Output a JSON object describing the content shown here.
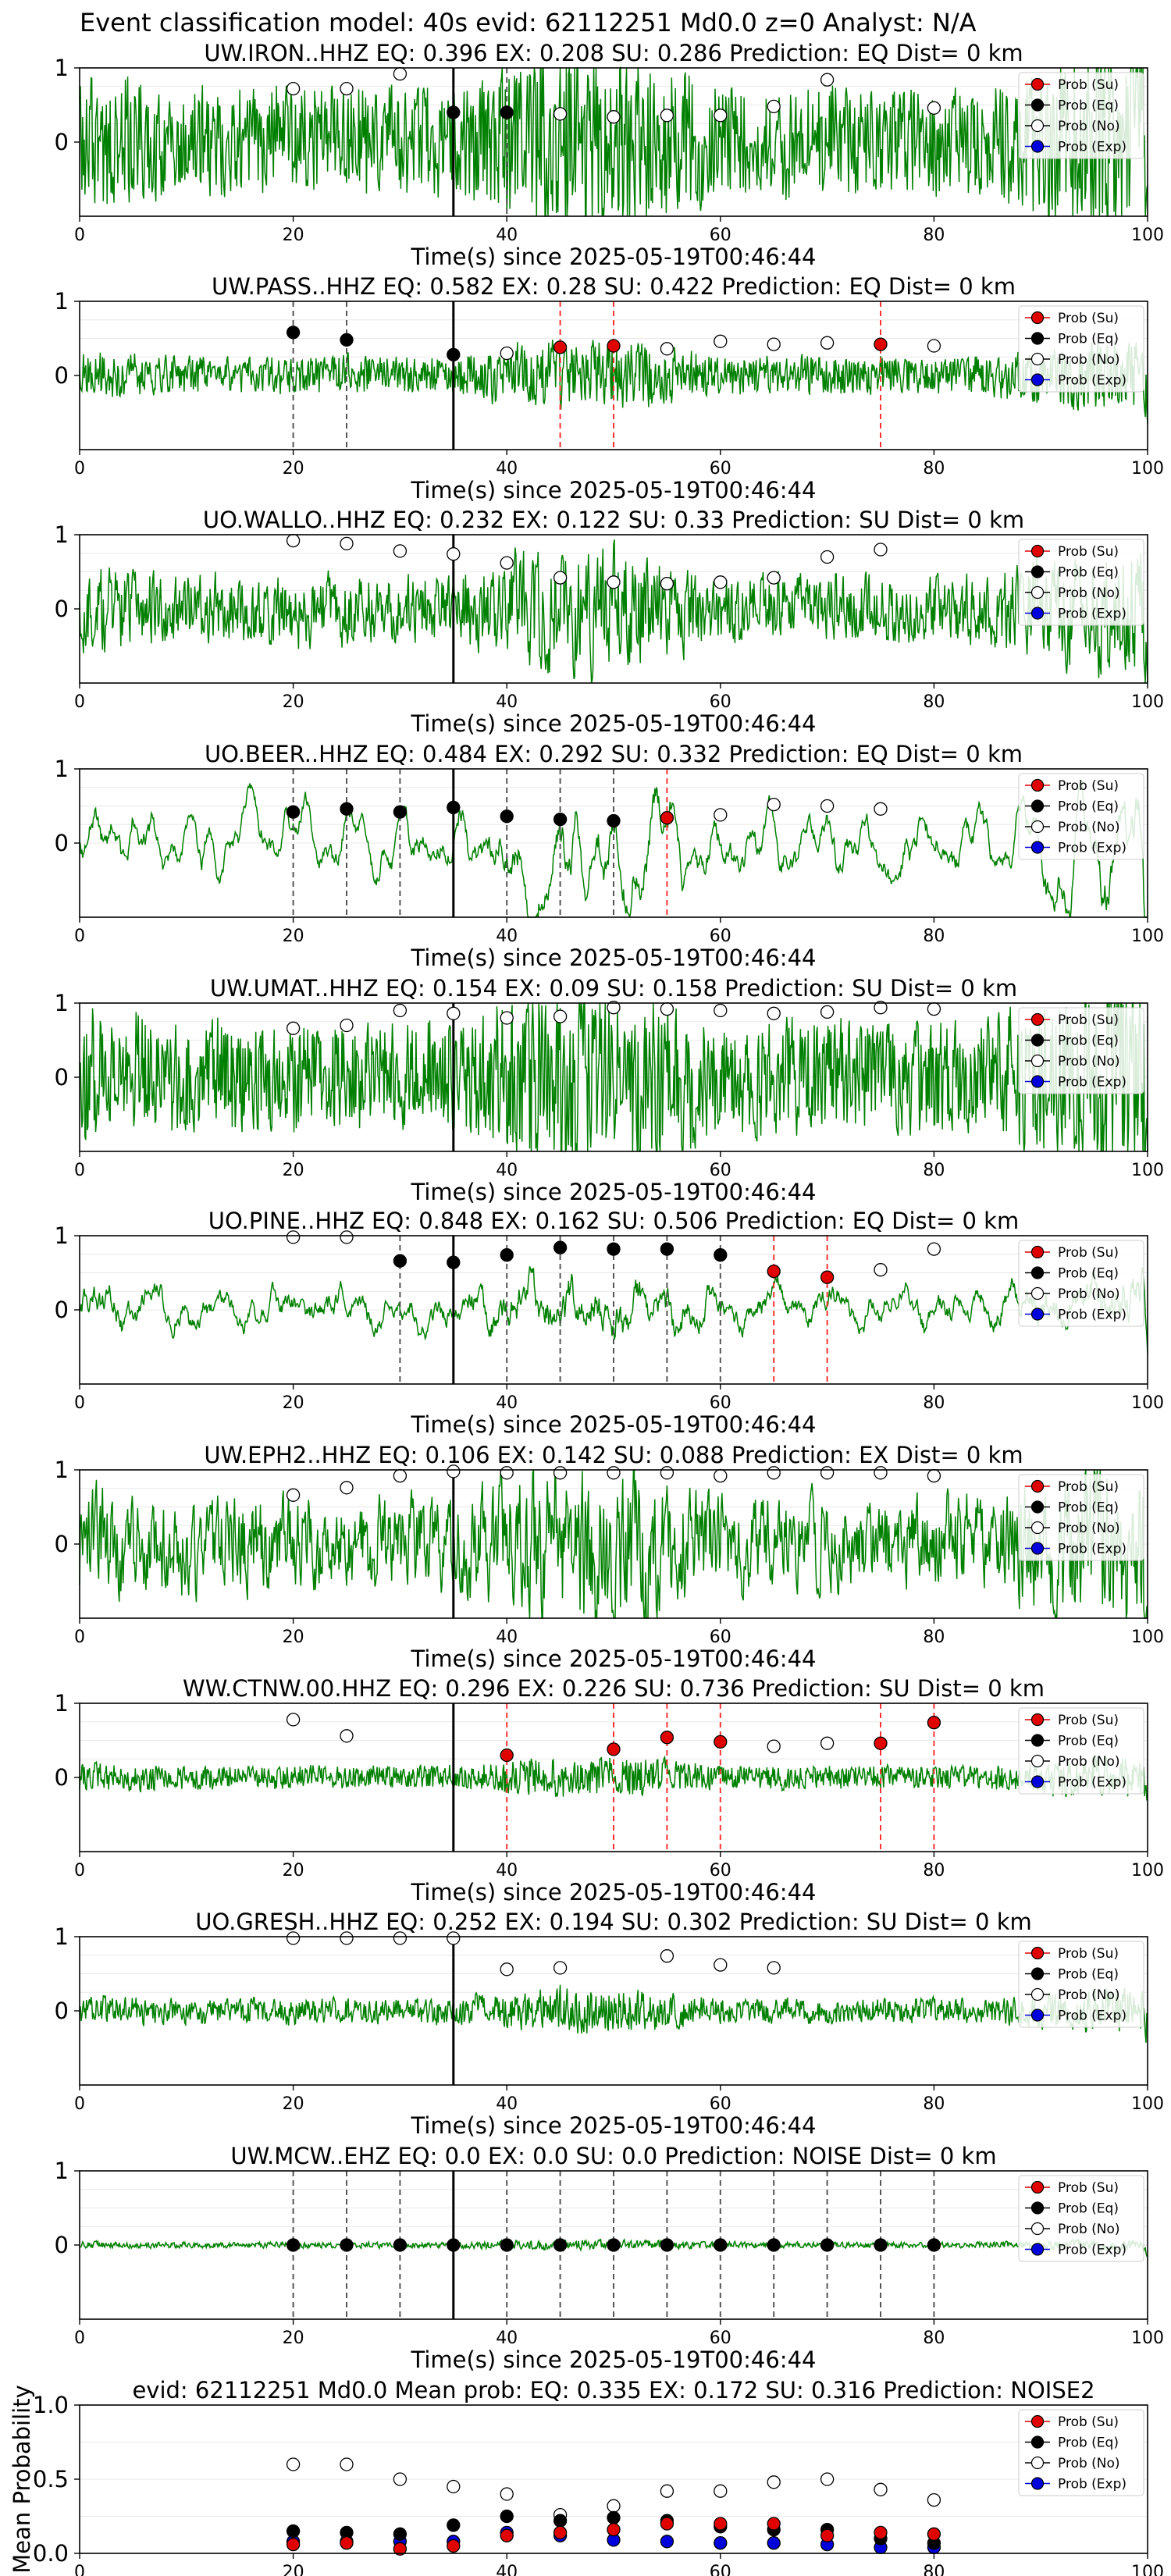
{
  "figure": {
    "suptitle": "Event classification model: 40s evid: 62112251 Md0.0 z=0 Analyst: N/A",
    "xlabel": "Time(s) since 2025-05-19T00:46:44",
    "mean_ylabel": "Mean Probability",
    "legend": [
      {
        "label": "Prob (Su)",
        "color": "#e00000"
      },
      {
        "label": "Prob (Eq)",
        "color": "#000000"
      },
      {
        "label": "Prob (No)",
        "color": "#ffffff"
      },
      {
        "label": "Prob (Exp)",
        "color": "#0000dd"
      }
    ],
    "colors": {
      "trace": "#008000",
      "arrival": "#000000",
      "eq_line": "#555555",
      "su_line": "#ff3333"
    }
  },
  "chart_data": [
    {
      "type": "scatter",
      "title": "UW.IRON..HHZ   EQ: 0.396  EX: 0.208  SU: 0.286   Prediction: EQ    Dist= 0 km",
      "xlim": [
        0,
        100
      ],
      "ylim": [
        -1,
        1
      ],
      "xticks": [
        0,
        20,
        40,
        60,
        80,
        100
      ],
      "yticks": [
        0,
        1
      ],
      "grid": true,
      "legend_position": "top-right",
      "arrival": 35,
      "noise": 0.28,
      "smooth": 0.1,
      "eq": [
        [
          35,
          0.4
        ],
        [
          40,
          0.4
        ]
      ],
      "su": [],
      "no": [
        [
          20,
          0.72
        ],
        [
          25,
          0.72
        ],
        [
          30,
          0.92
        ],
        [
          45,
          0.38
        ],
        [
          50,
          0.34
        ],
        [
          55,
          0.36
        ],
        [
          60,
          0.36
        ],
        [
          65,
          0.48
        ],
        [
          70,
          0.84
        ],
        [
          80,
          0.46
        ]
      ]
    },
    {
      "type": "scatter",
      "title": "UW.PASS..HHZ   EQ: 0.582  EX: 0.28  SU: 0.422   Prediction: EQ    Dist= 0 km",
      "xlim": [
        0,
        100
      ],
      "ylim": [
        -1,
        1
      ],
      "xticks": [
        0,
        20,
        40,
        60,
        80,
        100
      ],
      "yticks": [
        0,
        1
      ],
      "grid": true,
      "legend_position": "top-right",
      "arrival": 35,
      "noise": 0.1,
      "smooth": 0.12,
      "eq": [
        [
          20,
          0.58
        ],
        [
          25,
          0.48
        ],
        [
          35,
          0.28
        ]
      ],
      "su": [
        [
          45,
          0.38
        ],
        [
          50,
          0.4
        ],
        [
          75,
          0.42
        ]
      ],
      "no": [
        [
          40,
          0.3
        ],
        [
          55,
          0.36
        ],
        [
          60,
          0.46
        ],
        [
          65,
          0.42
        ],
        [
          70,
          0.44
        ],
        [
          80,
          0.4
        ]
      ]
    },
    {
      "type": "scatter",
      "title": "UO.WALLO..HHZ   EQ: 0.232  EX: 0.122  SU: 0.33   Prediction: SU    Dist= 0 km",
      "xlim": [
        0,
        100
      ],
      "ylim": [
        -1,
        1
      ],
      "xticks": [
        0,
        20,
        40,
        60,
        80,
        100
      ],
      "yticks": [
        0,
        1
      ],
      "grid": true,
      "legend_position": "top-right",
      "arrival": 35,
      "noise": 0.22,
      "smooth": 0.35,
      "eq": [],
      "su": [],
      "no": [
        [
          20,
          0.92
        ],
        [
          25,
          0.88
        ],
        [
          30,
          0.78
        ],
        [
          35,
          0.74
        ],
        [
          40,
          0.62
        ],
        [
          45,
          0.42
        ],
        [
          50,
          0.36
        ],
        [
          55,
          0.34
        ],
        [
          60,
          0.36
        ],
        [
          65,
          0.42
        ],
        [
          70,
          0.7
        ],
        [
          75,
          0.8
        ]
      ]
    },
    {
      "type": "scatter",
      "title": "UO.BEER..HHZ   EQ: 0.484  EX: 0.292  SU: 0.332   Prediction: EQ    Dist= 0 km",
      "xlim": [
        0,
        100
      ],
      "ylim": [
        -1,
        1
      ],
      "xticks": [
        0,
        20,
        40,
        60,
        80,
        100
      ],
      "yticks": [
        0,
        1
      ],
      "grid": true,
      "legend_position": "top-right",
      "arrival": 35,
      "noise": 0.55,
      "smooth": 0.92,
      "eq": [
        [
          20,
          0.42
        ],
        [
          25,
          0.46
        ],
        [
          30,
          0.42
        ],
        [
          35,
          0.48
        ],
        [
          40,
          0.36
        ],
        [
          45,
          0.32
        ],
        [
          50,
          0.3
        ]
      ],
      "su": [
        [
          55,
          0.34
        ]
      ],
      "no": [
        [
          60,
          0.38
        ],
        [
          65,
          0.52
        ],
        [
          70,
          0.5
        ],
        [
          75,
          0.46
        ]
      ]
    },
    {
      "type": "scatter",
      "title": "UW.UMAT..HHZ   EQ: 0.154  EX: 0.09  SU: 0.158   Prediction: SU    Dist= 0 km",
      "xlim": [
        0,
        100
      ],
      "ylim": [
        -1,
        1
      ],
      "xticks": [
        0,
        20,
        40,
        60,
        80,
        100
      ],
      "yticks": [
        0,
        1
      ],
      "grid": true,
      "legend_position": "top-right",
      "arrival": 35,
      "noise": 0.3,
      "smooth": 0.15,
      "eq": [],
      "su": [],
      "no": [
        [
          20,
          0.66
        ],
        [
          25,
          0.7
        ],
        [
          30,
          0.9
        ],
        [
          35,
          0.86
        ],
        [
          40,
          0.8
        ],
        [
          45,
          0.82
        ],
        [
          50,
          0.94
        ],
        [
          55,
          0.92
        ],
        [
          60,
          0.9
        ],
        [
          65,
          0.86
        ],
        [
          70,
          0.88
        ],
        [
          75,
          0.94
        ],
        [
          80,
          0.92
        ]
      ]
    },
    {
      "type": "scatter",
      "title": "UO.PINE..HHZ   EQ: 0.848  EX: 0.162  SU: 0.506   Prediction: EQ    Dist= 0 km",
      "xlim": [
        0,
        100
      ],
      "ylim": [
        -1,
        1
      ],
      "xticks": [
        0,
        20,
        40,
        60,
        80,
        100
      ],
      "yticks": [
        0,
        1
      ],
      "grid": true,
      "legend_position": "top-right",
      "arrival": 35,
      "noise": 0.3,
      "smooth": 0.85,
      "eq": [
        [
          30,
          0.66
        ],
        [
          35,
          0.64
        ],
        [
          40,
          0.74
        ],
        [
          45,
          0.84
        ],
        [
          50,
          0.82
        ],
        [
          55,
          0.82
        ],
        [
          60,
          0.74
        ]
      ],
      "su": [
        [
          65,
          0.52
        ],
        [
          70,
          0.44
        ]
      ],
      "no": [
        [
          20,
          0.98
        ],
        [
          25,
          0.98
        ],
        [
          75,
          0.54
        ],
        [
          80,
          0.82
        ]
      ]
    },
    {
      "type": "scatter",
      "title": "UW.EPH2..HHZ   EQ: 0.106  EX: 0.142  SU: 0.088   Prediction: EX    Dist= 0 km",
      "xlim": [
        0,
        100
      ],
      "ylim": [
        -1,
        1
      ],
      "xticks": [
        0,
        20,
        40,
        60,
        80,
        100
      ],
      "yticks": [
        0,
        1
      ],
      "grid": true,
      "legend_position": "top-right",
      "arrival": 35,
      "noise": 0.32,
      "smooth": 0.45,
      "eq": [],
      "su": [],
      "no": [
        [
          20,
          0.66
        ],
        [
          25,
          0.76
        ],
        [
          30,
          0.92
        ],
        [
          35,
          0.98
        ],
        [
          40,
          0.96
        ],
        [
          45,
          0.96
        ],
        [
          50,
          0.96
        ],
        [
          55,
          0.96
        ],
        [
          60,
          0.92
        ],
        [
          65,
          0.96
        ],
        [
          70,
          0.96
        ],
        [
          75,
          0.96
        ],
        [
          80,
          0.92
        ]
      ]
    },
    {
      "type": "scatter",
      "title": "WW.CTNW.00.HHZ   EQ: 0.296  EX: 0.226  SU: 0.736   Prediction: SU    Dist= 0 km",
      "xlim": [
        0,
        100
      ],
      "ylim": [
        -1,
        1
      ],
      "xticks": [
        0,
        20,
        40,
        60,
        80,
        100
      ],
      "yticks": [
        0,
        1
      ],
      "grid": true,
      "legend_position": "top-right",
      "arrival": 35,
      "noise": 0.06,
      "smooth": 0.1,
      "eq": [],
      "su": [
        [
          40,
          0.3
        ],
        [
          50,
          0.38
        ],
        [
          55,
          0.54
        ],
        [
          60,
          0.48
        ],
        [
          75,
          0.46
        ],
        [
          80,
          0.74
        ]
      ],
      "no": [
        [
          20,
          0.78
        ],
        [
          25,
          0.56
        ],
        [
          65,
          0.42
        ],
        [
          70,
          0.46
        ]
      ]
    },
    {
      "type": "scatter",
      "title": "UO.GRESH..HHZ   EQ: 0.252  EX: 0.194  SU: 0.302   Prediction: SU    Dist= 0 km",
      "xlim": [
        0,
        100
      ],
      "ylim": [
        -1,
        1
      ],
      "xticks": [
        0,
        20,
        40,
        60,
        80,
        100
      ],
      "yticks": [
        0,
        1
      ],
      "grid": true,
      "legend_position": "top-right",
      "arrival": 35,
      "noise": 0.07,
      "smooth": 0.2,
      "eq": [],
      "su": [],
      "no": [
        [
          20,
          0.98
        ],
        [
          25,
          0.98
        ],
        [
          30,
          0.98
        ],
        [
          35,
          0.98
        ],
        [
          40,
          0.56
        ],
        [
          45,
          0.58
        ],
        [
          55,
          0.74
        ],
        [
          60,
          0.62
        ],
        [
          65,
          0.58
        ]
      ]
    },
    {
      "type": "scatter",
      "title": "UW.MCW..EHZ   EQ: 0.0  EX: 0.0  SU: 0.0   Prediction: NOISE    Dist= 0 km",
      "xlim": [
        0,
        100
      ],
      "ylim": [
        -1,
        1
      ],
      "xticks": [
        0,
        20,
        40,
        60,
        80,
        100
      ],
      "yticks": [
        0,
        1
      ],
      "grid": true,
      "legend_position": "top-right",
      "arrival": 35,
      "noise": 0.018,
      "smooth": 0.3,
      "eq": [
        [
          20,
          0
        ],
        [
          25,
          0
        ],
        [
          30,
          0
        ],
        [
          35,
          0
        ],
        [
          40,
          0
        ],
        [
          45,
          0
        ],
        [
          50,
          0
        ],
        [
          55,
          0
        ],
        [
          60,
          0
        ],
        [
          65,
          0
        ],
        [
          70,
          0
        ],
        [
          75,
          0
        ],
        [
          80,
          0
        ]
      ],
      "su": [],
      "no": []
    },
    {
      "type": "scatter",
      "title": "evid: 62112251  Md0.0  Mean prob:   EQ: 0.335  EX: 0.172  SU: 0.316   Prediction: NOISE2",
      "xlim": [
        0,
        100
      ],
      "ylim": [
        0,
        1
      ],
      "xticks": [
        0,
        20,
        40,
        60,
        80,
        100
      ],
      "yticks": [
        0.0,
        0.5,
        1.0
      ],
      "ylabel": "Mean Probability",
      "grid": true,
      "legend_position": "top-right",
      "x": [
        20,
        25,
        30,
        35,
        40,
        45,
        50,
        55,
        60,
        65,
        70,
        75,
        80
      ],
      "series": [
        {
          "name": "Prob (Su)",
          "values": [
            0.06,
            0.07,
            0.03,
            0.05,
            0.12,
            0.14,
            0.16,
            0.2,
            0.2,
            0.2,
            0.12,
            0.14,
            0.13
          ]
        },
        {
          "name": "Prob (Eq)",
          "values": [
            0.15,
            0.14,
            0.13,
            0.19,
            0.25,
            0.22,
            0.24,
            0.22,
            0.18,
            0.16,
            0.16,
            0.1,
            0.07
          ]
        },
        {
          "name": "Prob (No)",
          "values": [
            0.6,
            0.6,
            0.5,
            0.45,
            0.4,
            0.26,
            0.32,
            0.42,
            0.42,
            0.48,
            0.5,
            0.43,
            0.36
          ]
        },
        {
          "name": "Prob (Exp)",
          "values": [
            0.08,
            0.08,
            0.08,
            0.08,
            0.14,
            0.12,
            0.09,
            0.08,
            0.07,
            0.07,
            0.06,
            0.04,
            0.04
          ]
        }
      ]
    }
  ]
}
